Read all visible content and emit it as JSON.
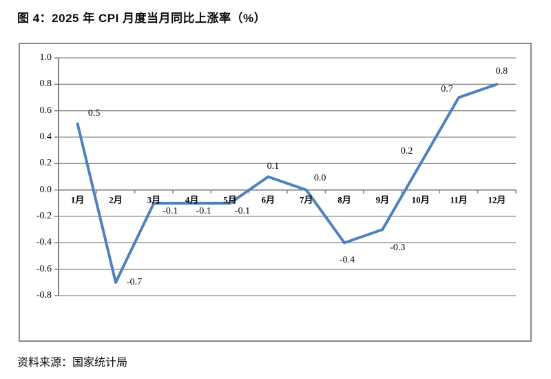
{
  "chart_data": {
    "type": "line",
    "title": "图 4：2025 年 CPI 月度当月同比上涨率（%）",
    "source": "资料来源：国家统计局",
    "categories": [
      "1月",
      "2月",
      "3月",
      "4月",
      "5月",
      "6月",
      "7月",
      "8月",
      "9月",
      "10月",
      "11月",
      "12月"
    ],
    "series": [
      {
        "name": "CPI月度当月同比上涨率",
        "values": [
          0.5,
          -0.7,
          -0.1,
          -0.1,
          -0.1,
          0.1,
          0.0,
          -0.4,
          -0.3,
          0.2,
          0.7,
          0.8
        ]
      }
    ],
    "data_labels": [
      "0.5",
      "-0.7",
      "-0.1",
      "-0.1",
      "-0.1",
      "0.1",
      "0.0",
      "-0.4",
      "-0.3",
      "0.2",
      "0.7",
      "0.8"
    ],
    "ylim": [
      -0.8,
      1.0
    ],
    "ytick_step": 0.2,
    "ytick_labels": [
      "1.0",
      "0.8",
      "0.6",
      "0.4",
      "0.2",
      "0.0",
      "-0.2",
      "-0.4",
      "-0.6",
      "-0.8"
    ],
    "grid": true,
    "legend": "none",
    "colors": {
      "line": "#4F81BD",
      "gridline": "#8a8a8a",
      "axis": "#7f7f7f",
      "text": "#000000",
      "frame_border": "#8a8a8a"
    }
  }
}
